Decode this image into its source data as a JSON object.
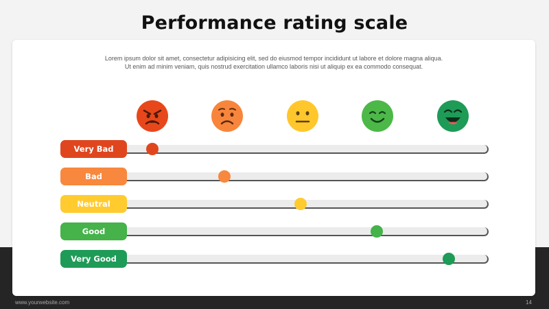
{
  "slide": {
    "title": "Performance rating scale",
    "intro_line1": "Lorem ipsum dolor sit amet, consectetur  adipisicing elit, sed do eiusmod tempor incididunt ut labore et dolore magna aliqua.",
    "intro_line2": "Ut enim ad minim veniam, quis nostrud exercitation ullamco laboris nisi ut aliquip ex ea commodo consequat.",
    "footer_url": "www.yourwebsite.com",
    "page_number": "14"
  },
  "faces": [
    {
      "icon": "very-angry-face-icon",
      "color": "#e8471b"
    },
    {
      "icon": "sad-face-icon",
      "color": "#f7863c"
    },
    {
      "icon": "neutral-face-icon",
      "color": "#ffc72c"
    },
    {
      "icon": "smiling-face-icon",
      "color": "#4cb848"
    },
    {
      "icon": "laughing-face-icon",
      "color": "#1e9b57"
    }
  ],
  "ratings": [
    {
      "label": "Very Bad",
      "color": "#e0461e",
      "level_percent": 7
    },
    {
      "label": "Bad",
      "color": "#f7883e",
      "level_percent": 27
    },
    {
      "label": "Neutral",
      "color": "#ffcb2f",
      "level_percent": 48
    },
    {
      "label": "Good",
      "color": "#45b24a",
      "level_percent": 69
    },
    {
      "label": "Very Good",
      "color": "#1e9b57",
      "level_percent": 89
    }
  ]
}
